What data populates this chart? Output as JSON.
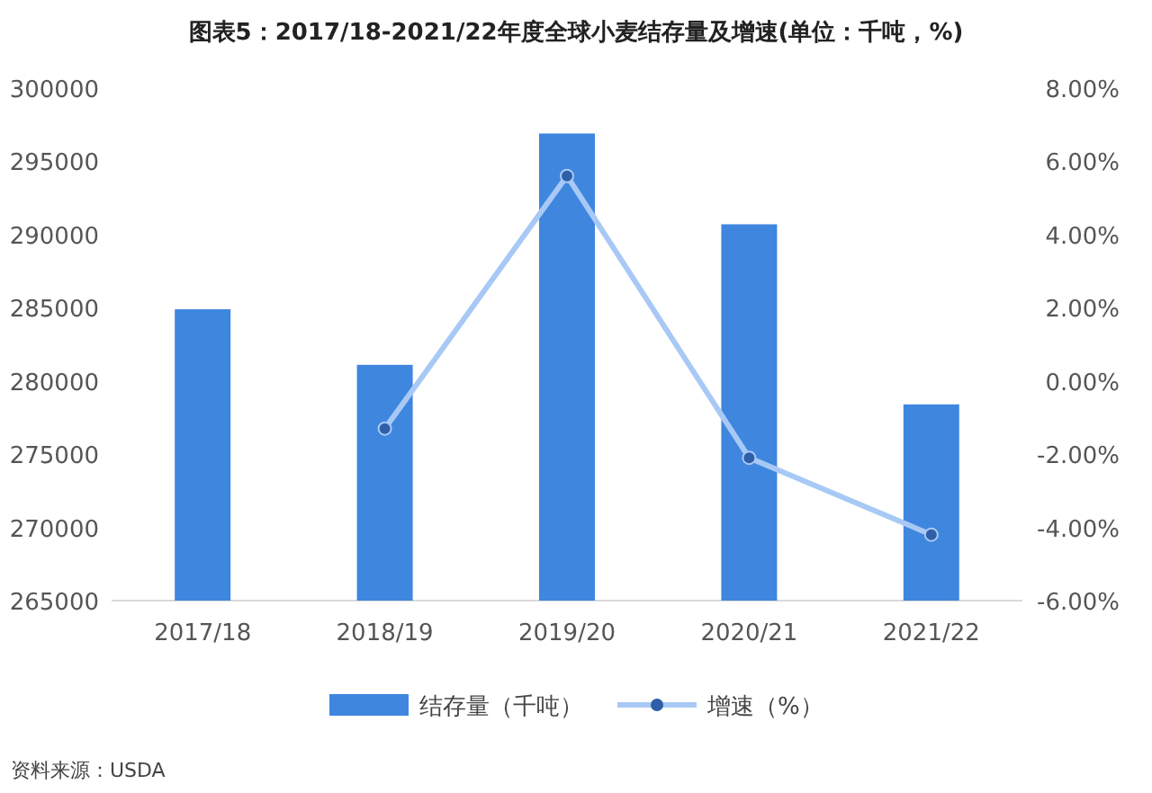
{
  "chart_data": {
    "type": "bar",
    "title": "图表5：2017/18-2021/22年度全球小麦结存量及增速(单位：千吨，%)",
    "categories": [
      "2017/18",
      "2018/19",
      "2019/20",
      "2020/21",
      "2021/22"
    ],
    "series": [
      {
        "name": "结存量（千吨）",
        "color": "#3f86df",
        "values": [
          284900,
          281100,
          296900,
          290700,
          278400
        ]
      },
      {
        "name": "增速（%）",
        "type": "line",
        "axis": "y2",
        "color": "#a8c9f5",
        "marker": "circle",
        "values": [
          null,
          -1.3,
          5.6,
          -2.1,
          -4.2
        ]
      }
    ],
    "ylim": [
      265000,
      300000
    ],
    "yticks": [
      265000,
      270000,
      275000,
      280000,
      285000,
      290000,
      295000,
      300000
    ],
    "y2lim": [
      -6,
      8
    ],
    "y2ticks": [
      {
        "value": -6,
        "label": "-6.00%"
      },
      {
        "value": -4,
        "label": "-4.00%"
      },
      {
        "value": -2,
        "label": "-2.00%"
      },
      {
        "value": 0,
        "label": "0.00%"
      },
      {
        "value": 2,
        "label": "2.00%"
      },
      {
        "value": 4,
        "label": "4.00%"
      },
      {
        "value": 6,
        "label": "6.00%"
      },
      {
        "value": 8,
        "label": "8.00%"
      }
    ],
    "legend": "bottom",
    "annotations": [
      "资料来源：USDA"
    ]
  }
}
